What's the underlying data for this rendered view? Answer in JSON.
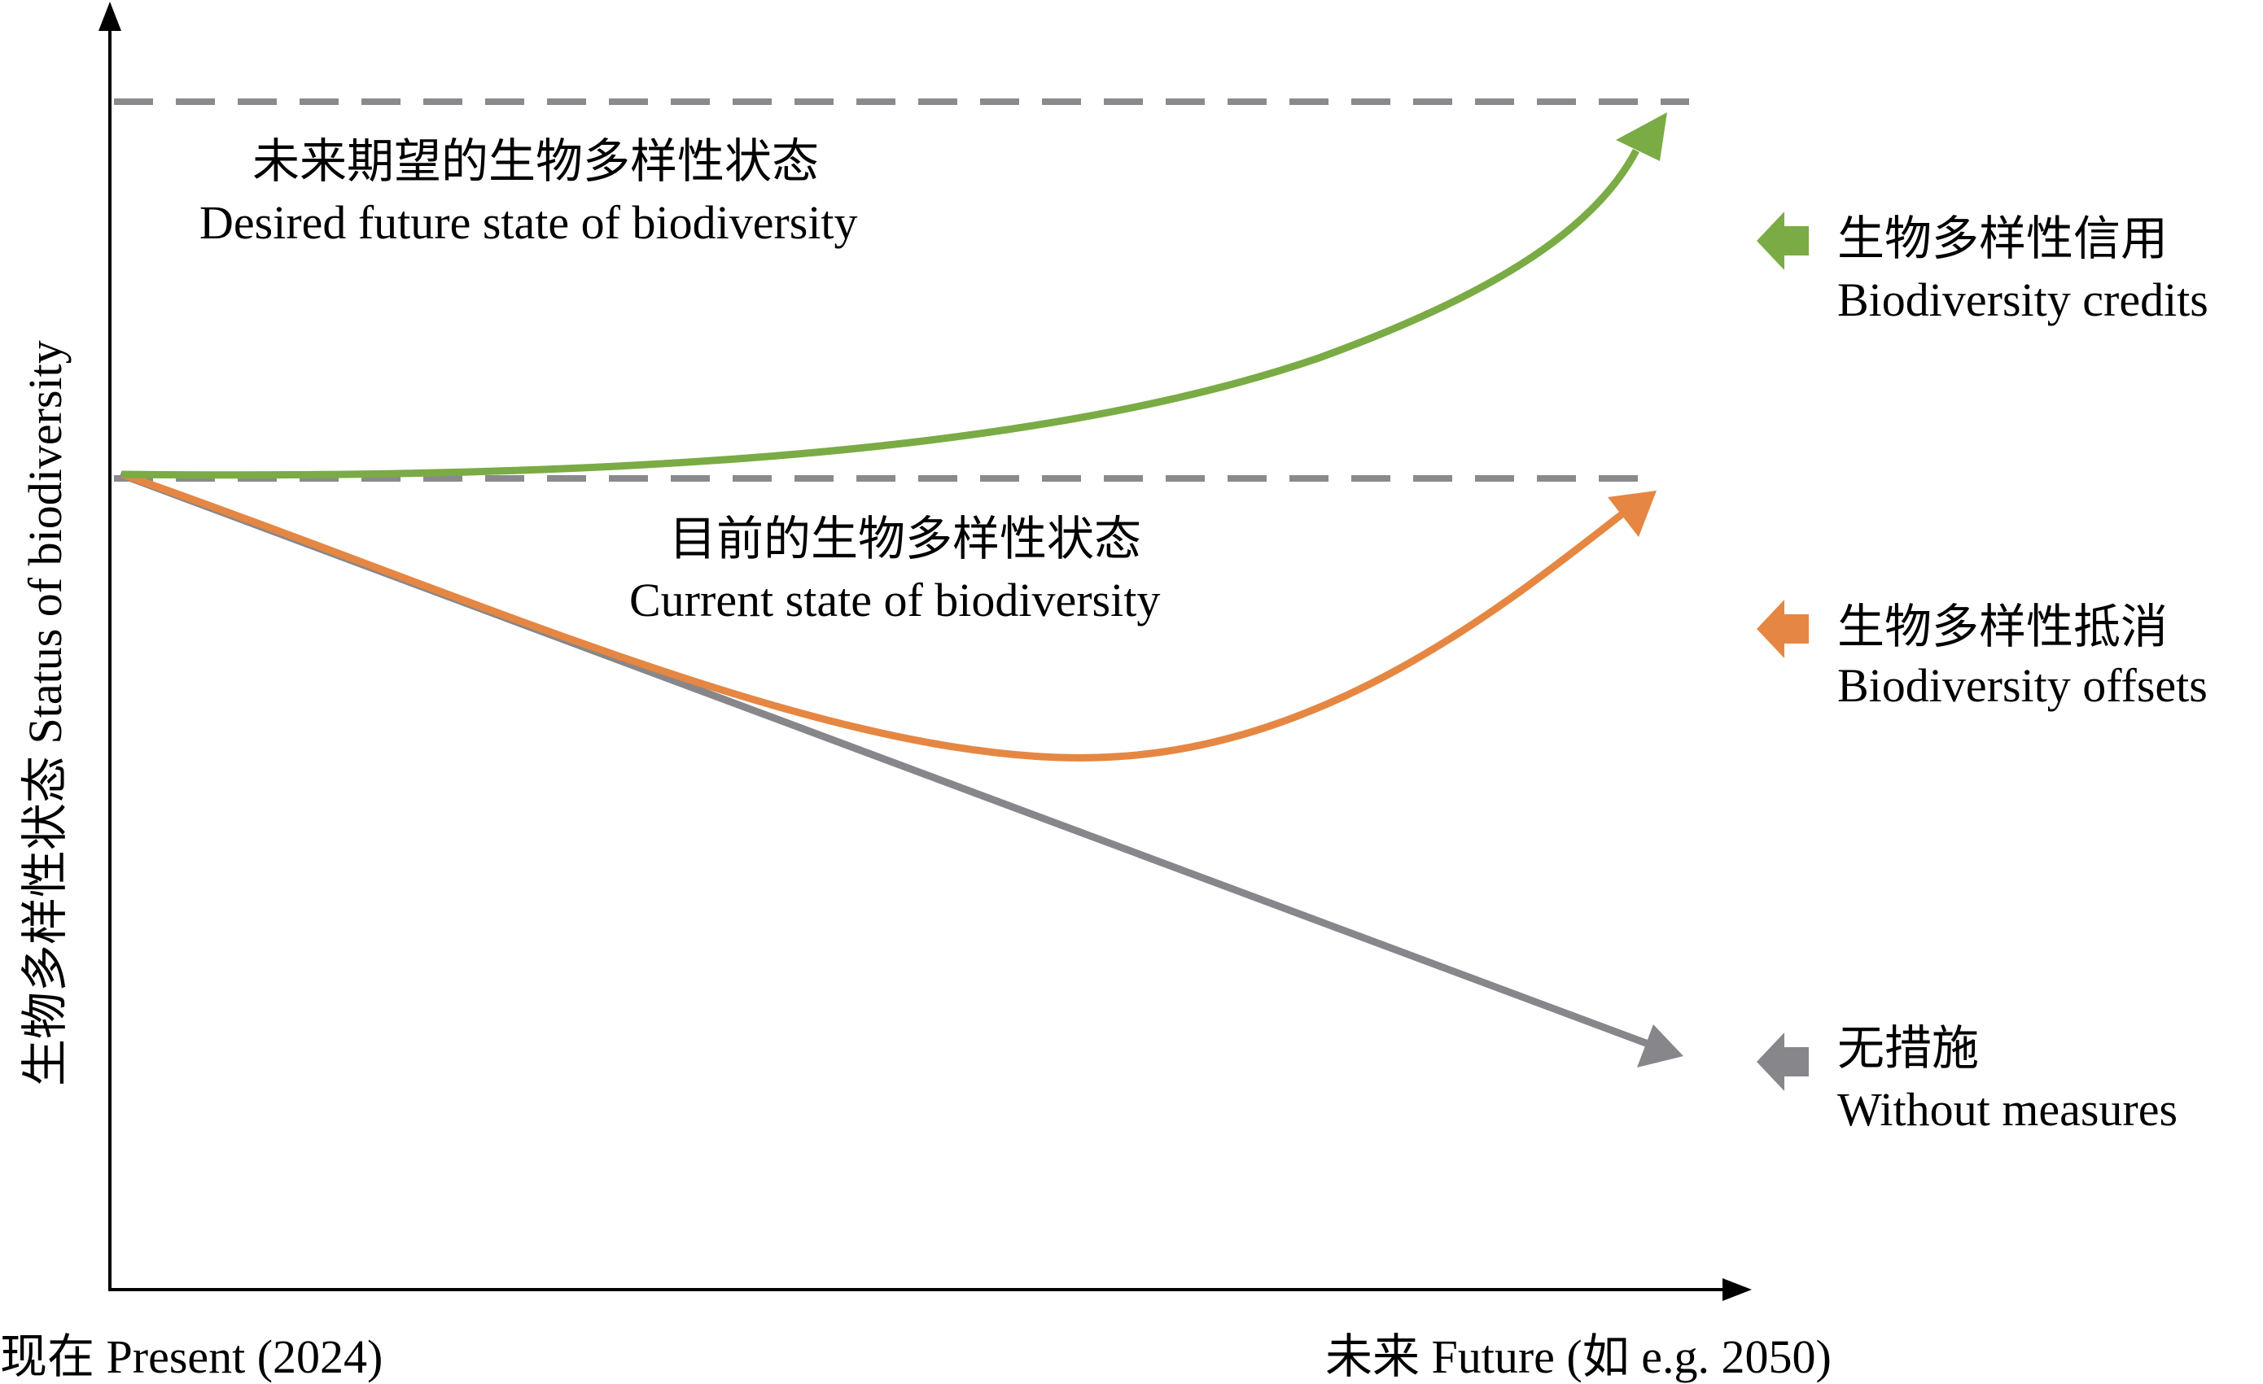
{
  "colors": {
    "credits": "#7aab45",
    "offsets": "#e58742",
    "without": "#87878b",
    "dashed": "#8a8a8e",
    "axis": "#000000"
  },
  "labels": {
    "desired_zh": "未来期望的生物多样性状态",
    "desired_en": "Desired future state of biodiversity",
    "current_zh": "目前的生物多样性状态",
    "current_en": "Current state of biodiversity"
  },
  "legend": [
    {
      "icon": "left-arrow-icon",
      "zh": "生物多样性信用",
      "en": "Biodiversity credits",
      "color_key": "credits"
    },
    {
      "icon": "left-arrow-icon",
      "zh": "生物多样性抵消",
      "en": "Biodiversity offsets",
      "color_key": "offsets"
    },
    {
      "icon": "left-arrow-icon",
      "zh": "无措施",
      "en": "Without measures",
      "color_key": "without"
    }
  ],
  "axes": {
    "y_label": "生物多样性状态 Status of biodiversity",
    "x_start": "现在 Present (2024)",
    "x_end": "未来 Future (如 e.g. 2050)"
  }
}
